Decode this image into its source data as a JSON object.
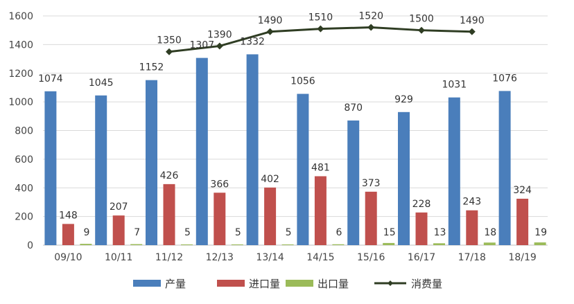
{
  "chart_data": {
    "type": "bar",
    "categories": [
      "09/10",
      "10/11",
      "11/12",
      "12/13",
      "13/14",
      "14/15",
      "15/16",
      "16/17",
      "17/18",
      "18/19"
    ],
    "series": [
      {
        "name": "产量",
        "kind": "bar",
        "color": "#4a7ebb",
        "values": [
          1074,
          1045,
          1152,
          1307,
          1332,
          1056,
          870,
          929,
          1031,
          1076
        ]
      },
      {
        "name": "进口量",
        "kind": "bar",
        "color": "#c0504d",
        "values": [
          148,
          207,
          426,
          366,
          402,
          481,
          373,
          228,
          243,
          324
        ]
      },
      {
        "name": "出口量",
        "kind": "bar",
        "color": "#9bbb59",
        "values": [
          9,
          7,
          5,
          5,
          5,
          6,
          15,
          13,
          18,
          19
        ]
      },
      {
        "name": "消费量",
        "kind": "line",
        "color": "#2f3d23",
        "values": [
          null,
          null,
          1350,
          1390,
          1490,
          1510,
          1520,
          1500,
          1490,
          null
        ]
      }
    ],
    "yticks": [
      "0",
      "200",
      "400",
      "600",
      "800",
      "1000",
      "1200",
      "1400",
      "1600"
    ],
    "ylim": [
      0,
      1600
    ],
    "grid": true,
    "legend_position": "bottom",
    "title": "",
    "xlabel": "",
    "ylabel": ""
  }
}
